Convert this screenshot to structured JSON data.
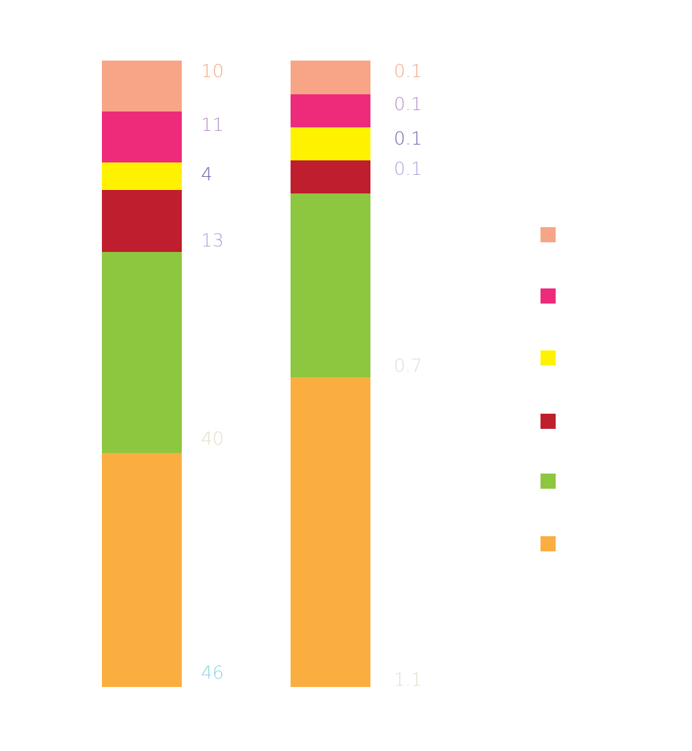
{
  "chart_data": {
    "type": "bar",
    "stacked": true,
    "categories": [
      "",
      ""
    ],
    "series": [
      {
        "color": "#fbae40",
        "values": [
          46,
          1.1
        ],
        "label_colors": [
          "#8fd3df",
          "#e3dccb"
        ]
      },
      {
        "color": "#8dc63f",
        "values": [
          40,
          0.7
        ],
        "label_colors": [
          "#e3dccb",
          "#e3dccb"
        ]
      },
      {
        "color": "#be1e2d",
        "values": [
          13,
          0.1
        ],
        "label_colors": [
          "#a9a3d3",
          "#a9a3d3"
        ]
      },
      {
        "color": "#fff200",
        "values": [
          4,
          0.1
        ],
        "label_colors": [
          "#6a66ad",
          "#6a66ad"
        ]
      },
      {
        "color": "#ee2a7b",
        "values": [
          11,
          0.1
        ],
        "label_colors": [
          "#b58ec9",
          "#b58ec9"
        ]
      },
      {
        "color": "#f7a586",
        "values": [
          10,
          0.1
        ],
        "label_colors": [
          "#f7a586",
          "#f7a586"
        ]
      }
    ],
    "data_labels": [
      [
        "46",
        "40",
        "13",
        "4",
        "11",
        "10"
      ],
      [
        "1.1",
        "0.7",
        "0.1",
        "0.1",
        "0.1",
        "0.1"
      ]
    ],
    "legend": {
      "position": "right",
      "colors": [
        "#f7a586",
        "#ee2a7b",
        "#fff200",
        "#be1e2d",
        "#8dc63f",
        "#fbae40"
      ]
    },
    "grid": false,
    "axes_visible": false,
    "note": "Second bar segments are not drawn to the printed values; they follow the visual proportions of the original."
  }
}
